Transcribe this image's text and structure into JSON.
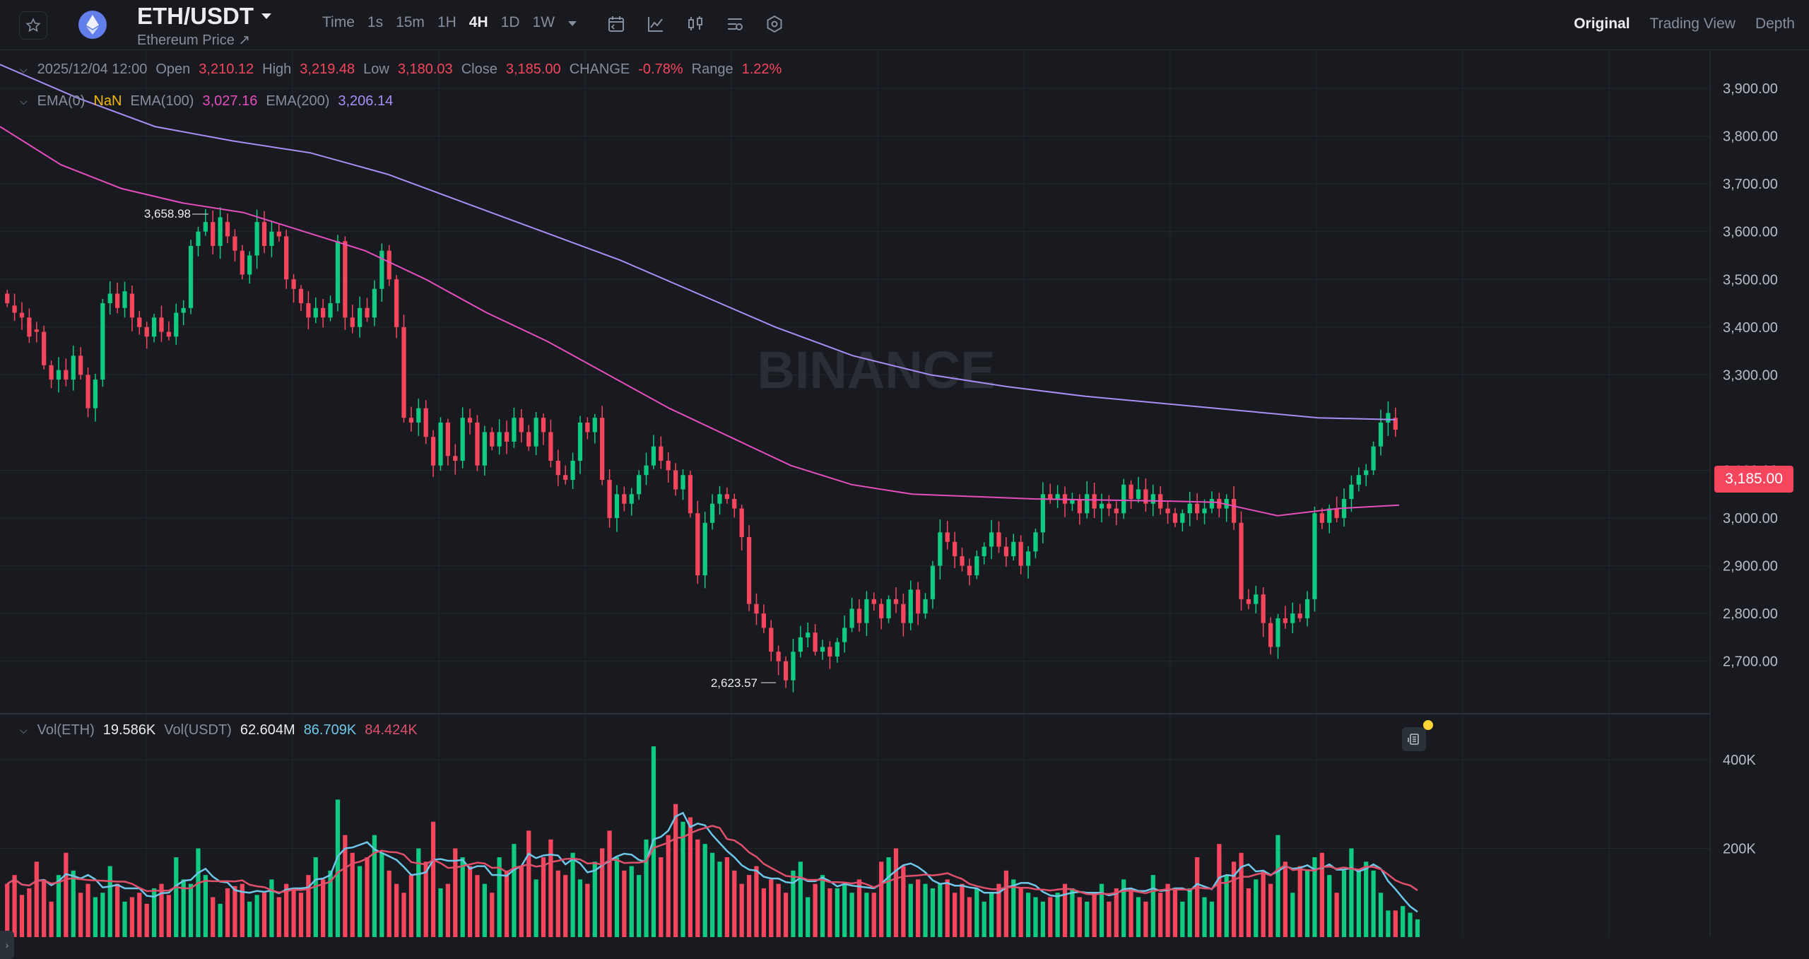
{
  "header": {
    "pair": "ETH/USDT",
    "subtitle": "Ethereum Price ↗",
    "intervals": [
      "Time",
      "1s",
      "15m",
      "1H",
      "4H",
      "1D",
      "1W"
    ],
    "active_interval": "4H",
    "views": [
      "Original",
      "Trading View",
      "Depth"
    ],
    "active_view": "Original"
  },
  "ohlc": {
    "date": "2025/12/04 12:00",
    "open_label": "Open",
    "open": "3,210.12",
    "high_label": "High",
    "high": "3,219.48",
    "low_label": "Low",
    "low": "3,180.03",
    "close_label": "Close",
    "close": "3,185.00",
    "change_label": "CHANGE",
    "change": "-0.78%",
    "range_label": "Range",
    "range": "1.22%"
  },
  "ema": {
    "ema0_label": "EMA(0)",
    "ema0": "NaN",
    "ema100_label": "EMA(100)",
    "ema100": "3,027.16",
    "ema200_label": "EMA(200)",
    "ema200": "3,206.14"
  },
  "volume": {
    "vol_eth_label": "Vol(ETH)",
    "vol_eth": "19.586K",
    "vol_usdt_label": "Vol(USDT)",
    "vol_usdt": "62.604M",
    "ma1": "86.709K",
    "ma2": "84.424K"
  },
  "watermark": "BINANCE",
  "current_price": "3,185.00",
  "colors": {
    "up": "#0ecb81",
    "down": "#f6465d",
    "ema100": "#e64ebd",
    "ema200": "#a88ef5",
    "ema0": "#f0b90b",
    "vol_ma1": "#6fc7e8",
    "vol_ma2": "#e0506b"
  },
  "chart_data": {
    "type": "candlestick",
    "y_ticks": [
      "3,900.00",
      "3,800.00",
      "3,700.00",
      "3,600.00",
      "3,500.00",
      "3,400.00",
      "3,300.00",
      "3,100.00",
      "3,000.00",
      "2,900.00",
      "2,800.00",
      "2,700.00"
    ],
    "ylim": [
      2590,
      3980
    ],
    "vol_ticks": [
      "400K",
      "200K"
    ],
    "vol_lim": [
      0,
      470000
    ],
    "high_marker": "3,658.98",
    "low_marker": "2,623.57",
    "ema100": [
      3820,
      3740,
      3690,
      3660,
      3640,
      3600,
      3560,
      3500,
      3430,
      3370,
      3300,
      3230,
      3170,
      3110,
      3070,
      3050,
      3045,
      3040,
      3038,
      3036,
      3033,
      3005,
      3020,
      3027
    ],
    "ema200": [
      3950,
      3880,
      3820,
      3790,
      3765,
      3720,
      3660,
      3600,
      3540,
      3470,
      3400,
      3340,
      3300,
      3275,
      3255,
      3240,
      3225,
      3210,
      3206
    ],
    "candles": [
      [
        3470,
        3450
      ],
      [
        3445,
        3430
      ],
      [
        3430,
        3420
      ],
      [
        3420,
        3380
      ],
      [
        3395,
        3390
      ],
      [
        3390,
        3320
      ],
      [
        3320,
        3290
      ],
      [
        3290,
        3310
      ],
      [
        3310,
        3290
      ],
      [
        3290,
        3340
      ],
      [
        3340,
        3300
      ],
      [
        3300,
        3230
      ],
      [
        3230,
        3290
      ],
      [
        3290,
        3450
      ],
      [
        3450,
        3470
      ],
      [
        3470,
        3440
      ],
      [
        3440,
        3475
      ],
      [
        3470,
        3420
      ],
      [
        3420,
        3400
      ],
      [
        3400,
        3380
      ],
      [
        3380,
        3420
      ],
      [
        3420,
        3390
      ],
      [
        3390,
        3380
      ],
      [
        3380,
        3430
      ],
      [
        3430,
        3440
      ],
      [
        3440,
        3570
      ],
      [
        3570,
        3600
      ],
      [
        3600,
        3620
      ],
      [
        3620,
        3570
      ],
      [
        3570,
        3630
      ],
      [
        3620,
        3590
      ],
      [
        3590,
        3560
      ],
      [
        3560,
        3510
      ],
      [
        3510,
        3550
      ],
      [
        3550,
        3620
      ],
      [
        3620,
        3570
      ],
      [
        3570,
        3600
      ],
      [
        3600,
        3590
      ],
      [
        3590,
        3500
      ],
      [
        3500,
        3480
      ],
      [
        3480,
        3450
      ],
      [
        3450,
        3420
      ],
      [
        3420,
        3440
      ],
      [
        3440,
        3420
      ],
      [
        3420,
        3450
      ],
      [
        3450,
        3580
      ],
      [
        3580,
        3420
      ],
      [
        3420,
        3400
      ],
      [
        3400,
        3440
      ],
      [
        3440,
        3420
      ],
      [
        3420,
        3480
      ],
      [
        3480,
        3560
      ],
      [
        3560,
        3500
      ],
      [
        3500,
        3400
      ],
      [
        3400,
        3210
      ],
      [
        3210,
        3200
      ],
      [
        3200,
        3230
      ],
      [
        3230,
        3170
      ],
      [
        3170,
        3110
      ],
      [
        3110,
        3200
      ],
      [
        3200,
        3130
      ],
      [
        3130,
        3120
      ],
      [
        3120,
        3210
      ],
      [
        3210,
        3200
      ],
      [
        3200,
        3110
      ],
      [
        3110,
        3180
      ],
      [
        3180,
        3150
      ],
      [
        3150,
        3180
      ],
      [
        3180,
        3160
      ],
      [
        3160,
        3210
      ],
      [
        3210,
        3180
      ],
      [
        3180,
        3150
      ],
      [
        3150,
        3210
      ],
      [
        3210,
        3180
      ],
      [
        3180,
        3120
      ],
      [
        3120,
        3090
      ],
      [
        3090,
        3080
      ],
      [
        3080,
        3120
      ],
      [
        3120,
        3200
      ],
      [
        3200,
        3180
      ],
      [
        3180,
        3210
      ],
      [
        3210,
        3080
      ],
      [
        3080,
        3000
      ],
      [
        3000,
        3050
      ],
      [
        3050,
        3030
      ],
      [
        3030,
        3050
      ],
      [
        3050,
        3090
      ],
      [
        3090,
        3110
      ],
      [
        3110,
        3150
      ],
      [
        3150,
        3120
      ],
      [
        3120,
        3100
      ],
      [
        3100,
        3060
      ],
      [
        3060,
        3090
      ],
      [
        3090,
        3010
      ],
      [
        3010,
        2880
      ],
      [
        2880,
        2990
      ],
      [
        2990,
        3030
      ],
      [
        3030,
        3050
      ],
      [
        3050,
        3040
      ],
      [
        3040,
        3020
      ],
      [
        3020,
        2960
      ],
      [
        2960,
        2820
      ],
      [
        2820,
        2800
      ],
      [
        2800,
        2770
      ],
      [
        2770,
        2720
      ],
      [
        2720,
        2700
      ],
      [
        2700,
        2660
      ],
      [
        2660,
        2720
      ],
      [
        2720,
        2750
      ],
      [
        2750,
        2760
      ],
      [
        2760,
        2720
      ],
      [
        2720,
        2730
      ],
      [
        2730,
        2710
      ],
      [
        2710,
        2740
      ],
      [
        2740,
        2770
      ],
      [
        2770,
        2810
      ],
      [
        2810,
        2780
      ],
      [
        2780,
        2830
      ],
      [
        2830,
        2820
      ],
      [
        2820,
        2790
      ],
      [
        2790,
        2830
      ],
      [
        2830,
        2820
      ],
      [
        2820,
        2780
      ],
      [
        2780,
        2850
      ],
      [
        2850,
        2800
      ],
      [
        2800,
        2830
      ],
      [
        2830,
        2900
      ],
      [
        2900,
        2970
      ],
      [
        2970,
        2950
      ],
      [
        2950,
        2920
      ],
      [
        2920,
        2900
      ],
      [
        2900,
        2880
      ],
      [
        2880,
        2920
      ],
      [
        2920,
        2940
      ],
      [
        2940,
        2970
      ],
      [
        2970,
        2940
      ],
      [
        2940,
        2920
      ],
      [
        2920,
        2950
      ],
      [
        2950,
        2900
      ],
      [
        2900,
        2930
      ],
      [
        2930,
        2970
      ],
      [
        2970,
        3050
      ],
      [
        3050,
        3040
      ],
      [
        3040,
        3050
      ],
      [
        3050,
        3030
      ],
      [
        3030,
        3040
      ],
      [
        3040,
        3010
      ],
      [
        3010,
        3050
      ],
      [
        3050,
        3020
      ],
      [
        3020,
        3030
      ],
      [
        3030,
        3020
      ],
      [
        3020,
        3010
      ],
      [
        3010,
        3070
      ],
      [
        3070,
        3040
      ],
      [
        3040,
        3060
      ],
      [
        3060,
        3030
      ],
      [
        3030,
        3050
      ],
      [
        3050,
        3020
      ],
      [
        3020,
        3010
      ],
      [
        3010,
        2990
      ],
      [
        2990,
        3010
      ],
      [
        3010,
        3030
      ],
      [
        3030,
        3010
      ],
      [
        3010,
        3020
      ],
      [
        3020,
        3040
      ],
      [
        3040,
        3020
      ],
      [
        3020,
        3040
      ],
      [
        3040,
        2990
      ],
      [
        2990,
        2830
      ],
      [
        2830,
        2820
      ],
      [
        2820,
        2840
      ],
      [
        2840,
        2780
      ],
      [
        2780,
        2730
      ],
      [
        2730,
        2790
      ],
      [
        2790,
        2780
      ],
      [
        2780,
        2800
      ],
      [
        2800,
        2790
      ],
      [
        2790,
        2830
      ],
      [
        2830,
        3010
      ],
      [
        3010,
        2990
      ],
      [
        2990,
        3020
      ],
      [
        3020,
        3000
      ],
      [
        3000,
        3040
      ],
      [
        3040,
        3070
      ],
      [
        3070,
        3090
      ],
      [
        3090,
        3100
      ],
      [
        3100,
        3150
      ],
      [
        3150,
        3200
      ],
      [
        3200,
        3220
      ],
      [
        3210,
        3185
      ]
    ],
    "volumes": [
      120,
      140,
      95,
      110,
      170,
      130,
      80,
      140,
      190,
      150,
      100,
      120,
      90,
      100,
      160,
      120,
      80,
      90,
      100,
      75,
      110,
      120,
      95,
      180,
      130,
      120,
      200,
      140,
      90,
      75,
      110,
      115,
      120,
      80,
      95,
      100,
      130,
      90,
      120,
      110,
      100,
      140,
      180,
      130,
      150,
      310,
      230,
      190,
      160,
      180,
      230,
      190,
      150,
      120,
      100,
      140,
      200,
      170,
      260,
      110,
      120,
      200,
      180,
      160,
      140,
      120,
      100,
      180,
      150,
      210,
      160,
      240,
      130,
      180,
      220,
      150,
      140,
      190,
      130,
      120,
      170,
      200,
      240,
      180,
      150,
      160,
      140,
      220,
      430,
      180,
      230,
      300,
      260,
      270,
      220,
      210,
      190,
      170,
      180,
      150,
      120,
      140,
      160,
      110,
      130,
      120,
      100,
      150,
      170,
      90,
      120,
      140,
      110,
      110,
      120,
      100,
      130,
      100,
      100,
      170,
      180,
      200,
      160,
      120,
      130,
      120,
      110,
      120,
      130,
      100,
      120,
      90,
      110,
      80,
      100,
      120,
      150,
      130,
      110,
      100,
      90,
      80,
      90,
      100,
      120,
      110,
      90,
      80,
      100,
      120,
      80,
      110,
      130,
      110,
      90,
      80,
      140,
      100,
      120,
      110,
      80,
      110,
      180,
      90,
      80,
      210,
      140,
      170,
      190,
      110,
      130,
      150,
      120,
      230,
      170,
      100,
      160,
      150,
      180,
      190,
      140,
      100,
      150,
      200,
      150,
      170,
      150,
      100,
      60,
      60,
      70,
      55,
      40
    ]
  }
}
